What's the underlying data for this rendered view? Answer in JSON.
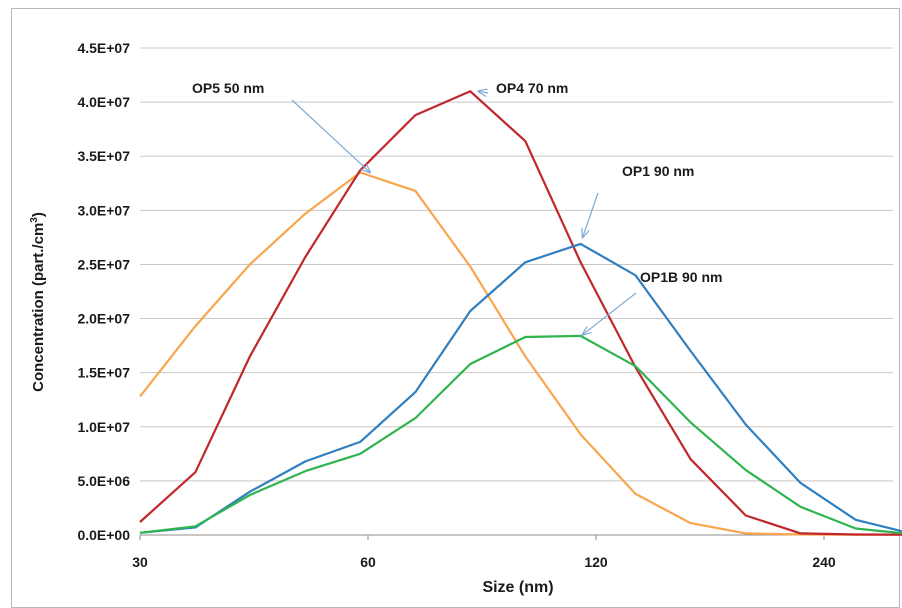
{
  "chart_data": {
    "type": "line",
    "title": "",
    "xlabel": "Size (nm)",
    "ylabel": "Concentration (part./cm",
    "ylabel_sup": "3",
    "ylabel_close": ")",
    "ylim": [
      0,
      45000000
    ],
    "y_ticks": [
      {
        "value": 0,
        "label": "0.0E+00"
      },
      {
        "value": 5000000,
        "label": "5.0E+06"
      },
      {
        "value": 10000000,
        "label": "1.0E+07"
      },
      {
        "value": 15000000,
        "label": "1.5E+07"
      },
      {
        "value": 20000000,
        "label": "2.0E+07"
      },
      {
        "value": 25000000,
        "label": "2.5E+07"
      },
      {
        "value": 30000000,
        "label": "3.0E+07"
      },
      {
        "value": 35000000,
        "label": "3.5E+07"
      },
      {
        "value": 40000000,
        "label": "4.0E+07"
      },
      {
        "value": 45000000,
        "label": "4.5E+07"
      }
    ],
    "x_scale": "log",
    "xlim": [
      30,
      340
    ],
    "x_ticks": [
      {
        "value": 30,
        "label": "30"
      },
      {
        "value": 60,
        "label": "60"
      },
      {
        "value": 120,
        "label": "120"
      },
      {
        "value": 240,
        "label": "240"
      }
    ],
    "grid": "horizontal",
    "x": [
      30,
      35.5,
      41.9,
      49.6,
      58.6,
      69.3,
      81.9,
      96.8,
      114.5,
      135.3,
      160,
      189.2,
      223.6,
      264.3,
      312.5,
      340
    ],
    "series": [
      {
        "name": "OP5 50 nm",
        "color": "#f9a54e",
        "values": [
          12800000,
          19300000,
          25000000,
          29700000,
          33500000,
          31800000,
          24800000,
          16500000,
          9300000,
          3800000,
          1100000,
          150000,
          50000,
          30000,
          30000,
          30000
        ]
      },
      {
        "name": "OP4 70 nm",
        "color": "#c0262a",
        "values": [
          1200000,
          5800000,
          16500000,
          25700000,
          33700000,
          38800000,
          41000000,
          36400000,
          25200000,
          15500000,
          7000000,
          1800000,
          150000,
          50000,
          30000,
          30000
        ]
      },
      {
        "name": "OP1 90 nm",
        "color": "#2f7fc1",
        "values": [
          200000,
          700000,
          4000000,
          6800000,
          8600000,
          13200000,
          20700000,
          25200000,
          26900000,
          24000000,
          17000000,
          10200000,
          4800000,
          1400000,
          150000,
          50000
        ]
      },
      {
        "name": "OP1B 90 nm",
        "color": "#30b44f",
        "values": [
          200000,
          800000,
          3700000,
          5900000,
          7500000,
          10800000,
          15800000,
          18300000,
          18400000,
          15600000,
          10400000,
          6000000,
          2600000,
          600000,
          80000,
          50000
        ]
      }
    ],
    "annotations": [
      {
        "text": "OP5 50 nm",
        "target_x": 60,
        "target_y": 33500000
      },
      {
        "text": "OP4 70 nm",
        "target_x": 81.9,
        "target_y": 41000000
      },
      {
        "text": "OP1 90 nm",
        "target_x": 114.5,
        "target_y": 27500000
      },
      {
        "text": "OP1B 90 nm",
        "target_x": 114.5,
        "target_y": 18500000
      }
    ]
  }
}
